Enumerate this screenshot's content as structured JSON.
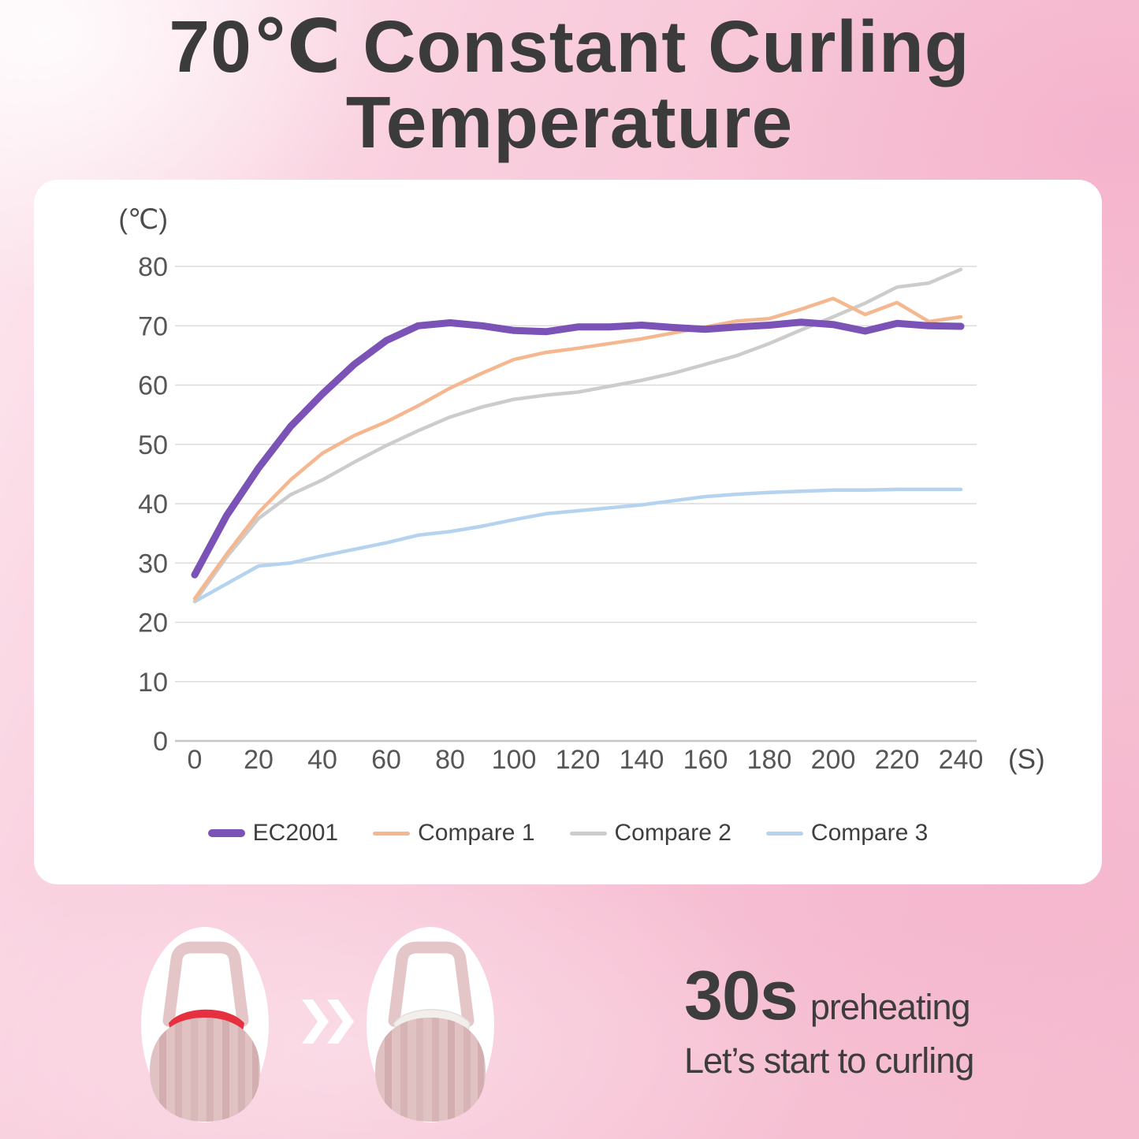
{
  "title": {
    "line1": "70℃ Constant Curling",
    "line2": "Temperature"
  },
  "chart_data": {
    "type": "line",
    "y_unit": "(℃)",
    "x_unit": "(S)",
    "ylim": [
      0,
      80
    ],
    "xlim": [
      0,
      240
    ],
    "grid": true,
    "legend_position": "bottom",
    "y_ticks": [
      0,
      10,
      20,
      30,
      40,
      50,
      60,
      70,
      80
    ],
    "x_ticks": [
      0,
      20,
      40,
      60,
      80,
      100,
      120,
      140,
      160,
      180,
      200,
      220,
      240
    ],
    "x": [
      0,
      10,
      20,
      30,
      40,
      50,
      60,
      70,
      80,
      90,
      100,
      110,
      120,
      130,
      140,
      150,
      160,
      170,
      180,
      190,
      200,
      210,
      220,
      230,
      240
    ],
    "series": [
      {
        "name": "EC2001",
        "color": "#7b52b6",
        "width": 9,
        "values": [
          28,
          38,
          46,
          53,
          58.5,
          63.5,
          67.5,
          70,
          70.5,
          70,
          69.2,
          69,
          69.8,
          69.8,
          70.1,
          69.7,
          69.4,
          69.8,
          70.1,
          70.6,
          70.2,
          69.1,
          70.4,
          70,
          69.9
        ]
      },
      {
        "name": "Compare 1",
        "color": "#f5b78f",
        "width": 4.5,
        "values": [
          24,
          31.5,
          38.5,
          44,
          48.5,
          51.5,
          53.8,
          56.5,
          59.5,
          62,
          64.3,
          65.5,
          66.2,
          67,
          67.8,
          68.8,
          69.8,
          70.8,
          71.2,
          72.8,
          74.6,
          71.9,
          73.9,
          70.7,
          71.5
        ]
      },
      {
        "name": "Compare 2",
        "color": "#cccccc",
        "width": 4.5,
        "values": [
          23.5,
          31,
          37.5,
          41.5,
          44,
          47,
          49.8,
          52.3,
          54.6,
          56.3,
          57.6,
          58.3,
          58.8,
          59.8,
          60.8,
          62,
          63.5,
          65,
          67,
          69.3,
          71.5,
          73.8,
          76.5,
          77.2,
          79.5
        ]
      },
      {
        "name": "Compare 3",
        "color": "#b5d3ee",
        "width": 4.5,
        "values": [
          23.5,
          26.5,
          29.5,
          30,
          31.2,
          32.3,
          33.4,
          34.7,
          35.3,
          36.2,
          37.3,
          38.3,
          38.8,
          39.3,
          39.8,
          40.5,
          41.2,
          41.6,
          41.9,
          42.1,
          42.3,
          42.3,
          42.4,
          42.4,
          42.4
        ]
      }
    ]
  },
  "footer": {
    "highlight": "30s",
    "highlight_suffix": "preheating",
    "line2": "Let’s start to curling"
  },
  "icons": {
    "double_chevron": "»"
  },
  "colors": {
    "title_text": "#3b3b3b",
    "card_background": "#ffffff",
    "page_pink": "#f8c9d9",
    "product_body_pink": "#e0c2c3",
    "heated_pad_red": "#e6303f",
    "cool_pad_white": "#f1eeec"
  }
}
